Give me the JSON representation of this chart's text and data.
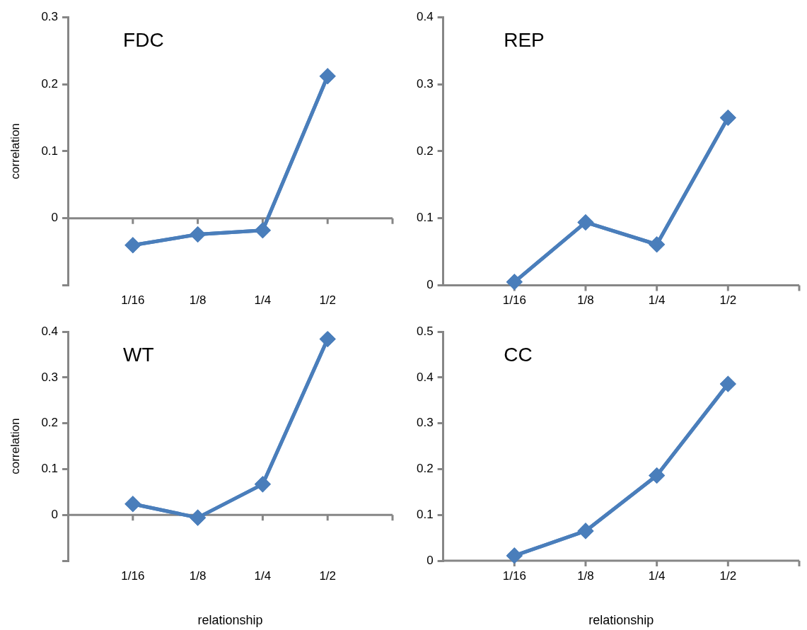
{
  "chart_data": [
    {
      "type": "line",
      "title": "FDC",
      "ylabel": "correlation",
      "categories": [
        "1/16",
        "1/8",
        "1/4",
        "1/2"
      ],
      "series": [
        {
          "color": "#4a7ebb",
          "values": [
            -0.04,
            -0.024,
            -0.018,
            0.212
          ]
        }
      ],
      "ylim": [
        -0.1,
        0.3
      ],
      "yticks": [
        {
          "value": -0.1,
          "label": null
        },
        0,
        0.1,
        0.2,
        0.3
      ],
      "marker": "diamond"
    },
    {
      "type": "line",
      "title": "REP",
      "categories": [
        "1/16",
        "1/8",
        "1/4",
        "1/2"
      ],
      "series": [
        {
          "color": "#4a7ebb",
          "values": [
            0.005,
            0.094,
            0.061,
            0.25
          ]
        }
      ],
      "ylim": [
        0,
        0.4
      ],
      "yticks": [
        0,
        0.1,
        0.2,
        0.3,
        0.4
      ],
      "marker": "diamond"
    },
    {
      "type": "line",
      "title": "WT",
      "ylabel": "correlation",
      "xlabel": "relationship",
      "categories": [
        "1/16",
        "1/8",
        "1/4",
        "1/2"
      ],
      "series": [
        {
          "color": "#4a7ebb",
          "values": [
            0.024,
            -0.006,
            0.067,
            0.384
          ]
        }
      ],
      "ylim": [
        -0.1,
        0.4
      ],
      "yticks": [
        {
          "value": -0.1,
          "label": null
        },
        0,
        0.1,
        0.2,
        0.3,
        0.4
      ],
      "marker": "diamond"
    },
    {
      "type": "line",
      "title": "CC",
      "xlabel": "relationship",
      "categories": [
        "1/16",
        "1/8",
        "1/4",
        "1/2"
      ],
      "series": [
        {
          "color": "#4a7ebb",
          "values": [
            0.011,
            0.065,
            0.186,
            0.386
          ]
        }
      ],
      "ylim": [
        0,
        0.5
      ],
      "yticks": [
        0,
        0.1,
        0.2,
        0.3,
        0.4,
        0.5
      ],
      "marker": "diamond"
    }
  ]
}
